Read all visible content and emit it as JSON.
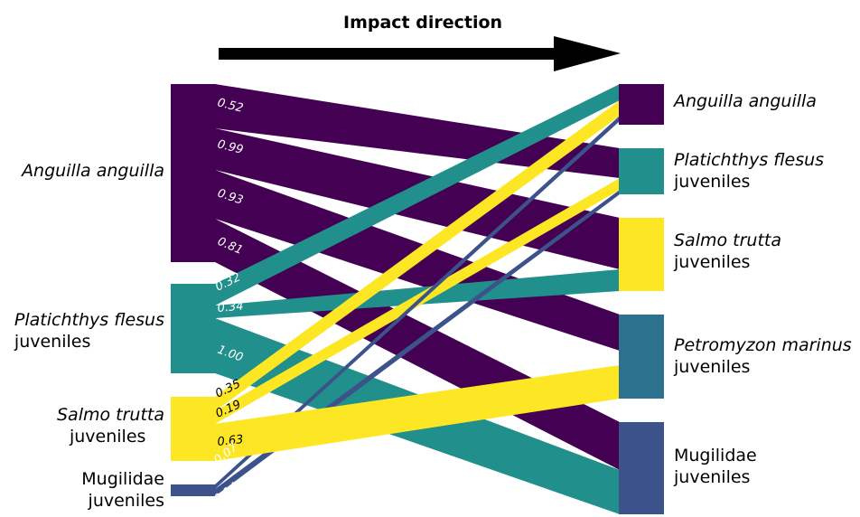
{
  "title": "Impact direction",
  "colors": {
    "eel": "#440154",
    "flounder": "#21908c",
    "trout": "#fde725",
    "lamprey": "#2c728e",
    "mullet": "#3b528b",
    "arrow": "#000000"
  },
  "sources": [
    {
      "key": "eel",
      "name": "Anguilla anguilla",
      "qualifier": ""
    },
    {
      "key": "flounder",
      "name": "Platichthys flesus",
      "qualifier": "juveniles"
    },
    {
      "key": "trout",
      "name": "Salmo trutta",
      "qualifier": "juveniles"
    },
    {
      "key": "mullet",
      "name": "Mugilidae",
      "qualifier": "juveniles"
    }
  ],
  "targets": [
    {
      "key": "eel",
      "name": "Anguilla anguilla",
      "qualifier": ""
    },
    {
      "key": "flounder",
      "name": "Platichthys flesus",
      "qualifier": "juveniles"
    },
    {
      "key": "trout",
      "name": "Salmo trutta",
      "qualifier": "juveniles"
    },
    {
      "key": "lamprey",
      "name": "Petromyzon marinus",
      "qualifier": "juveniles"
    },
    {
      "key": "mullet",
      "name": "Mugilidae",
      "qualifier": "juveniles"
    }
  ],
  "flows": [
    {
      "source": "eel",
      "target": "flounder",
      "value": "0.52"
    },
    {
      "source": "eel",
      "target": "trout",
      "value": "0.99"
    },
    {
      "source": "eel",
      "target": "lamprey",
      "value": "0.93"
    },
    {
      "source": "eel",
      "target": "mullet",
      "value": "0.81"
    },
    {
      "source": "flounder",
      "target": "eel",
      "value": "0.32"
    },
    {
      "source": "flounder",
      "target": "trout",
      "value": "0.34"
    },
    {
      "source": "flounder",
      "target": "mullet",
      "value": "1.00"
    },
    {
      "source": "trout",
      "target": "eel",
      "value": "0.35"
    },
    {
      "source": "trout",
      "target": "flounder",
      "value": "0.19"
    },
    {
      "source": "trout",
      "target": "lamprey",
      "value": "0.63"
    },
    {
      "source": "mullet",
      "target": "eel",
      "value": "0.07"
    },
    {
      "source": "mullet",
      "target": "flounder",
      "value": "0.14"
    }
  ]
}
